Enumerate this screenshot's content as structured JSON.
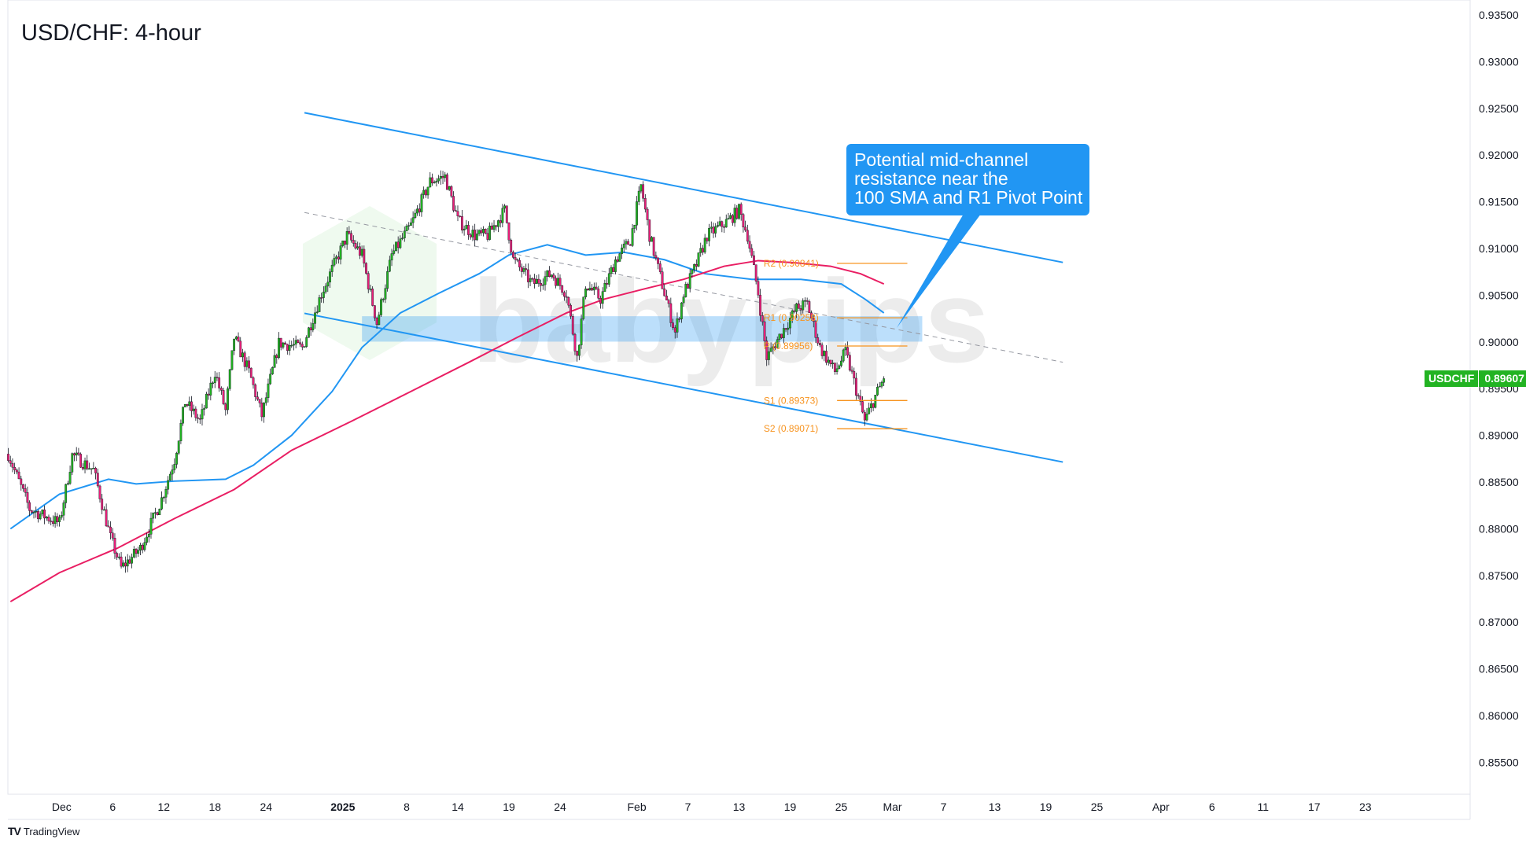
{
  "title": "USD/CHF: 4-hour",
  "symbol": "USDCHF",
  "last_price": "0.89607",
  "footer": {
    "brand": "TradingView",
    "icon": "tradingview-logo-icon"
  },
  "watermark": "babypips",
  "callout": {
    "lines": [
      "Potential mid-channel",
      "resistance near the",
      "100 SMA and R1 Pivot Point"
    ]
  },
  "colors": {
    "up": "#22b322",
    "down": "#e91e78",
    "sma100": "#2196f3",
    "sma200": "#e91e63",
    "channel": "#2196f3",
    "zone": "#2196f3",
    "pivot": "#f7931e",
    "callout": "#2196f3"
  },
  "chart_data": {
    "type": "candlestick",
    "timeframe": "4-hour",
    "ylim": [
      0.8525,
      0.9365
    ],
    "y_ticks": [
      "0.93500",
      "0.93000",
      "0.92500",
      "0.92000",
      "0.91500",
      "0.91000",
      "0.90500",
      "0.90000",
      "0.89500",
      "0.89000",
      "0.88500",
      "0.88000",
      "0.87500",
      "0.87000",
      "0.86500",
      "0.86000",
      "0.85500"
    ],
    "x_ticks": [
      {
        "date": "2024-12-02",
        "label": "Dec"
      },
      {
        "date": "2024-12-06",
        "label": "6"
      },
      {
        "date": "2024-12-12",
        "label": "12"
      },
      {
        "date": "2024-12-18",
        "label": "18"
      },
      {
        "date": "2024-12-24",
        "label": "24"
      },
      {
        "date": "2025-01-01",
        "label": "2025",
        "bold": true
      },
      {
        "date": "2025-01-08",
        "label": "8"
      },
      {
        "date": "2025-01-14",
        "label": "14"
      },
      {
        "date": "2025-01-19",
        "label": "19"
      },
      {
        "date": "2025-01-24",
        "label": "24"
      },
      {
        "date": "2025-02-03",
        "label": "Feb"
      },
      {
        "date": "2025-02-07",
        "label": "7"
      },
      {
        "date": "2025-02-13",
        "label": "13"
      },
      {
        "date": "2025-02-19",
        "label": "19"
      },
      {
        "date": "2025-02-25",
        "label": "25"
      },
      {
        "date": "2025-03-01",
        "label": "Mar"
      },
      {
        "date": "2025-03-07",
        "label": "7"
      },
      {
        "date": "2025-03-13",
        "label": "13"
      },
      {
        "date": "2025-03-19",
        "label": "19"
      },
      {
        "date": "2025-03-25",
        "label": "25"
      },
      {
        "date": "2025-04-01",
        "label": "Apr"
      },
      {
        "date": "2025-04-06",
        "label": "6"
      },
      {
        "date": "2025-04-11",
        "label": "11"
      },
      {
        "date": "2025-04-17",
        "label": "17"
      },
      {
        "date": "2025-04-23",
        "label": "23"
      }
    ],
    "price_path": [
      [
        "2024-11-26 00:00",
        0.8874
      ],
      [
        "2024-11-27 12:00",
        0.8821
      ],
      [
        "2024-11-29 20:00",
        0.8806
      ],
      [
        "2024-12-02 20:00",
        0.8879
      ],
      [
        "2024-12-04 12:00",
        0.8863
      ],
      [
        "2024-12-05 20:00",
        0.879
      ],
      [
        "2024-12-06 16:00",
        0.8758
      ],
      [
        "2024-12-10 04:00",
        0.8779
      ],
      [
        "2024-12-11 20:00",
        0.8832
      ],
      [
        "2024-12-12 20:00",
        0.8874
      ],
      [
        "2024-12-13 16:00",
        0.8936
      ],
      [
        "2024-12-16 20:00",
        0.8915
      ],
      [
        "2024-12-18 00:00",
        0.8968
      ],
      [
        "2024-12-18 20:00",
        0.8926
      ],
      [
        "2024-12-19 12:00",
        0.9005
      ],
      [
        "2024-12-20 16:00",
        0.8968
      ],
      [
        "2024-12-23 16:00",
        0.8921
      ],
      [
        "2024-12-25 00:00",
        0.8999
      ],
      [
        "2024-12-26 20:00",
        0.8994
      ],
      [
        "2024-12-30 08:00",
        0.9052
      ],
      [
        "2025-01-01 08:00",
        0.9114
      ],
      [
        "2025-01-02 12:00",
        0.9093
      ],
      [
        "2025-01-03 16:00",
        0.902
      ],
      [
        "2025-01-06 20:00",
        0.9093
      ],
      [
        "2025-01-08 08:00",
        0.9125
      ],
      [
        "2025-01-09 20:00",
        0.9172
      ],
      [
        "2025-01-13 00:00",
        0.9177
      ],
      [
        "2025-01-14 00:00",
        0.913
      ],
      [
        "2025-01-15 08:00",
        0.9114
      ],
      [
        "2025-01-16 08:00",
        0.9114
      ],
      [
        "2025-01-17 16:00",
        0.9141
      ],
      [
        "2025-01-20 08:00",
        0.9088
      ],
      [
        "2025-01-21 20:00",
        0.9062
      ],
      [
        "2025-01-23 08:00",
        0.9073
      ],
      [
        "2025-01-24 12:00",
        0.9052
      ],
      [
        "2025-01-27 08:00",
        0.8983
      ],
      [
        "2025-01-28 00:00",
        0.9062
      ],
      [
        "2025-01-29 04:00",
        0.9046
      ],
      [
        "2025-01-30 08:00",
        0.9088
      ],
      [
        "2025-01-31 12:00",
        0.9109
      ],
      [
        "2025-02-03 08:00",
        0.9167
      ],
      [
        "2025-02-04 00:00",
        0.9114
      ],
      [
        "2025-02-05 04:00",
        0.9052
      ],
      [
        "2025-02-06 00:00",
        0.901
      ],
      [
        "2025-02-06 16:00",
        0.9052
      ],
      [
        "2025-02-07 16:00",
        0.9083
      ],
      [
        "2025-02-10 12:00",
        0.9114
      ],
      [
        "2025-02-12 04:00",
        0.913
      ],
      [
        "2025-02-13 00:00",
        0.9141
      ],
      [
        "2025-02-13 16:00",
        0.9114
      ],
      [
        "2025-02-14 12:00",
        0.9052
      ],
      [
        "2025-02-17 04:00",
        0.8983
      ],
      [
        "2025-02-18 08:00",
        0.901
      ],
      [
        "2025-02-19 12:00",
        0.9036
      ],
      [
        "2025-02-20 08:00",
        0.9041
      ],
      [
        "2025-02-21 08:00",
        0.8994
      ],
      [
        "2025-02-24 12:00",
        0.8968
      ],
      [
        "2025-02-25 08:00",
        0.8989
      ],
      [
        "2025-02-26 00:00",
        0.8957
      ],
      [
        "2025-02-26 20:00",
        0.8915
      ],
      [
        "2025-02-27 16:00",
        0.8942
      ],
      [
        "2025-02-28 08:00",
        0.89607
      ]
    ],
    "sma100": [
      [
        "2024-11-26 00:00",
        0.88
      ],
      [
        "2024-11-29 20:00",
        0.8837
      ],
      [
        "2024-12-05 16:00",
        0.8853
      ],
      [
        "2024-12-09 20:00",
        0.8848
      ],
      [
        "2024-12-12 20:00",
        0.8851
      ],
      [
        "2024-12-18 20:00",
        0.8853
      ],
      [
        "2024-12-23 00:00",
        0.8868
      ],
      [
        "2024-12-26 00:00",
        0.89
      ],
      [
        "2024-12-31 04:00",
        0.8947
      ],
      [
        "2025-01-02 12:00",
        0.8994
      ],
      [
        "2025-01-07 12:00",
        0.9031
      ],
      [
        "2025-01-10 12:00",
        0.9052
      ],
      [
        "2025-01-15 16:00",
        0.9073
      ],
      [
        "2025-01-20 00:00",
        0.9093
      ],
      [
        "2025-01-23 00:00",
        0.9104
      ],
      [
        "2025-01-28 00:00",
        0.9093
      ],
      [
        "2025-01-31 00:00",
        0.9096
      ],
      [
        "2025-02-05 04:00",
        0.9088
      ],
      [
        "2025-02-10 08:00",
        0.9073
      ],
      [
        "2025-02-14 00:00",
        0.9067
      ],
      [
        "2025-02-19 20:00",
        0.9067
      ],
      [
        "2025-02-25 00:00",
        0.9062
      ],
      [
        "2025-02-26 20:00",
        0.9046
      ],
      [
        "2025-02-28 08:00",
        0.9031
      ]
    ],
    "sma200": [
      [
        "2024-11-26 00:00",
        0.8722
      ],
      [
        "2024-11-29 20:00",
        0.8753
      ],
      [
        "2024-12-06 08:00",
        0.8779
      ],
      [
        "2024-12-12 20:00",
        0.8811
      ],
      [
        "2024-12-19 12:00",
        0.8842
      ],
      [
        "2024-12-26 00:00",
        0.8884
      ],
      [
        "2025-01-01 16:00",
        0.8915
      ],
      [
        "2025-01-08 08:00",
        0.8947
      ],
      [
        "2025-01-14 20:00",
        0.8978
      ],
      [
        "2025-01-20 16:00",
        0.9005
      ],
      [
        "2025-01-24 12:00",
        0.9031
      ],
      [
        "2025-01-29 12:00",
        0.9046
      ],
      [
        "2025-02-03 16:00",
        0.9057
      ],
      [
        "2025-02-06 16:00",
        0.9067
      ],
      [
        "2025-02-11 20:00",
        0.9081
      ],
      [
        "2025-02-14 12:00",
        0.9087
      ],
      [
        "2025-02-19 04:00",
        0.9085
      ],
      [
        "2025-02-24 04:00",
        0.9081
      ],
      [
        "2025-02-26 12:00",
        0.9073
      ],
      [
        "2025-02-28 08:00",
        0.9062
      ]
    ],
    "channel": {
      "upper": [
        [
          "2024-12-27 00:00",
          0.92453
        ],
        [
          "2025-03-20 08:00",
          0.90851
        ]
      ],
      "mid": [
        [
          "2024-12-27 00:00",
          0.91385
        ],
        [
          "2025-03-20 08:00",
          0.89783
        ]
      ],
      "lower": [
        [
          "2024-12-27 00:00",
          0.90306
        ],
        [
          "2025-03-20 08:00",
          0.88714
        ]
      ]
    },
    "resistance_zone": {
      "from": "2025-01-02 12:00",
      "to": "2025-03-05 08:00",
      "low": 0.90003,
      "high": 0.90275
    },
    "pivots": [
      {
        "label": "R2 (0.90841)",
        "value": 0.90841
      },
      {
        "label": "R1 (0.90258)",
        "value": 0.90258
      },
      {
        "label": "P (0.89956)",
        "value": 0.89956
      },
      {
        "label": "S1 (0.89373)",
        "value": 0.89373
      },
      {
        "label": "S2 (0.89071)",
        "value": 0.89071
      }
    ]
  }
}
